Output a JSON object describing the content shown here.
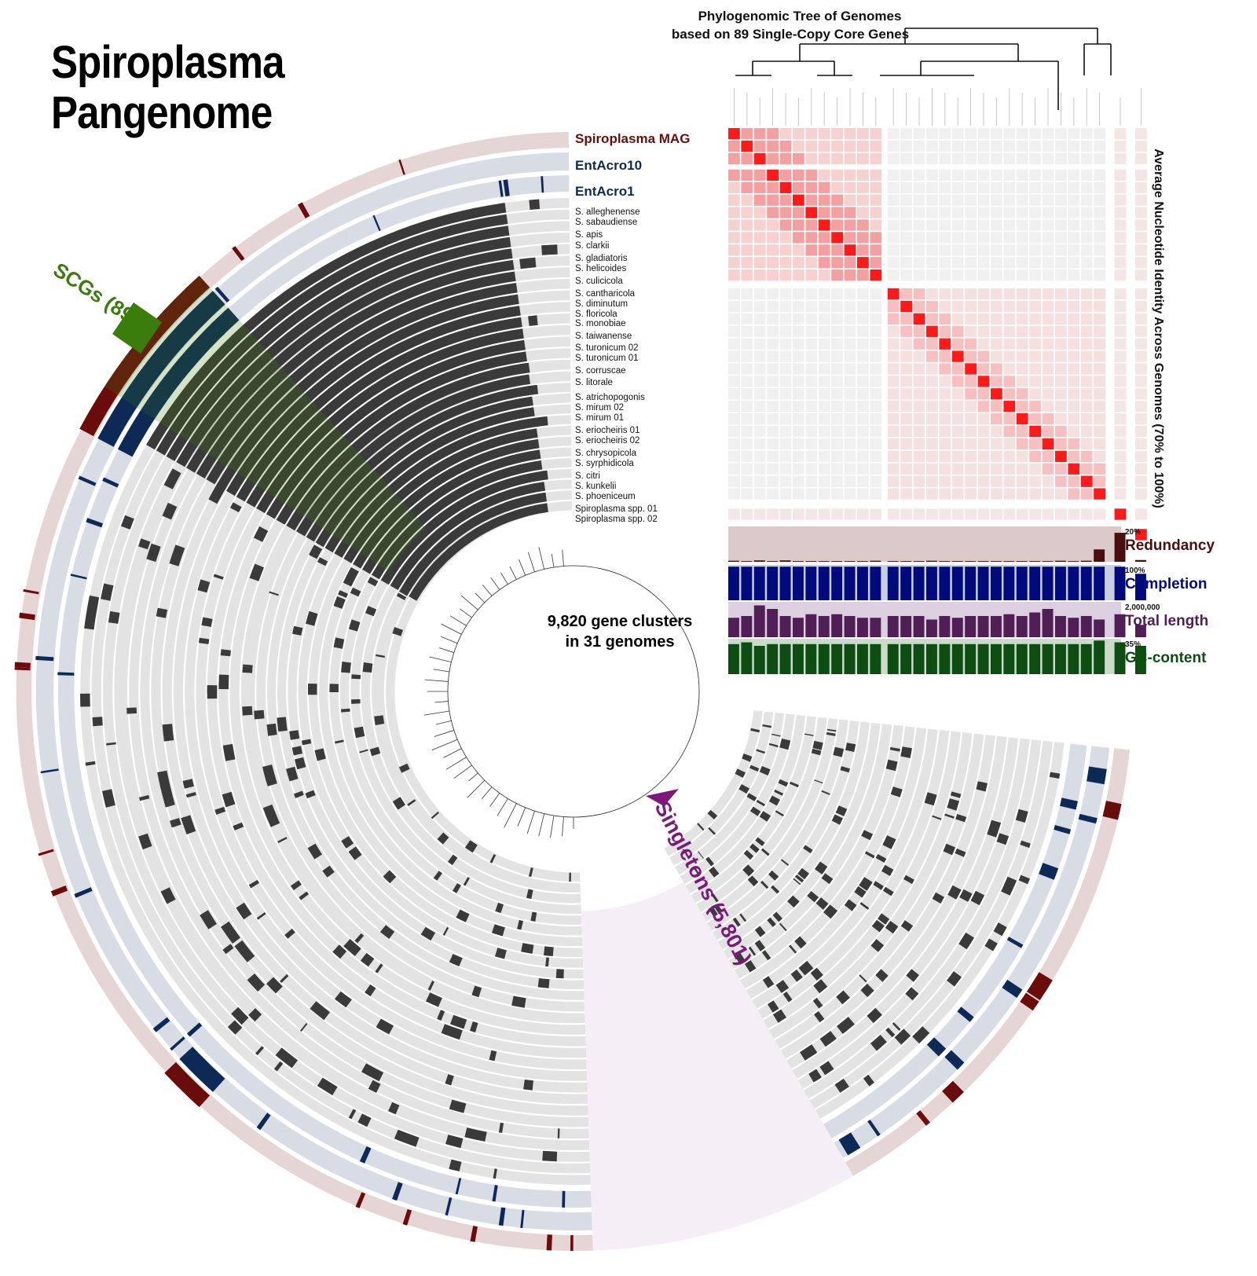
{
  "title": {
    "line1": "Spiroplasma",
    "line2": "Pangenome"
  },
  "tree_title": {
    "line1": "Phylogenomic Tree of Genomes",
    "line2": "based on 89 Single-Copy Core Genes"
  },
  "center": {
    "line1": "9,820 gene clusters",
    "line2": "in 31 genomes"
  },
  "scg_label": "SCGs (89)",
  "singletons_label": "Singletons (5,801)",
  "ani_label": "Average Nucleotide Identity Across Genomes (70% to 100%)",
  "genomes_highlight": [
    {
      "name": "Spiroplasma MAG",
      "color": "#6b0c0c"
    },
    {
      "name": "EntAcro10",
      "color": "#0d2a56"
    },
    {
      "name": "EntAcro1",
      "color": "#0d2a56"
    }
  ],
  "genomes_ref": [
    "S. alleghenense",
    "S. sabaudiense",
    "S. apis",
    "S. clarkii",
    "S. gladiatoris",
    "S. helicoides",
    "S. culicicola",
    "S. cantharicola",
    "S. diminutum",
    "S. floricola",
    "S. monobiae",
    "S. taiwanense",
    "S. turonicum 02",
    "S. turonicum 01",
    "S. corruscae",
    "S. litorale",
    "S. atrichopogonis",
    "S. mirum 02",
    "S. mirum 01",
    "S. eriocheiris 01",
    "S. eriocheiris 02",
    "S. chrysopicola",
    "S. syrphidicola",
    "S. citri",
    "S. kunkelii",
    "S. phoeniceum",
    "Spiroplasma spp. 01",
    "Spiroplasma spp. 02"
  ],
  "bar_layers": [
    {
      "label": "Redundancy",
      "max": "20%",
      "color": "#4a0e0e",
      "bg": "#dccaca"
    },
    {
      "label": "Completion",
      "max": "100%",
      "color": "#000a7a",
      "bg": "#c9cfe3"
    },
    {
      "label": "Total length",
      "max": "2,000,000",
      "color": "#4f1f55",
      "bg": "#dccfe0"
    },
    {
      "label": "GC-content",
      "max": "35%",
      "color": "#0d4d12",
      "bg": "#cadbc9"
    }
  ],
  "colors": {
    "ring_bg": "#e3e3e3",
    "hit": "#3a3a3a",
    "mag_ring": "#e6d5d5",
    "acro_ring": "#d8dce4",
    "scg": "#3a7d0c",
    "singletons": "#7b1a7b",
    "ani": "#ff1a1a"
  }
}
